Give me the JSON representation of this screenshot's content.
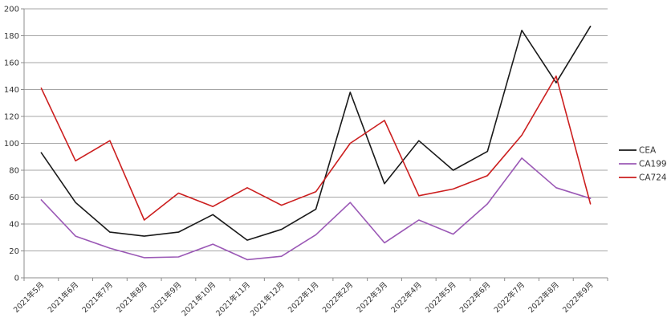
{
  "chart_data": {
    "type": "line",
    "title": "",
    "xlabel": "",
    "ylabel": "",
    "categories": [
      "2021年5月",
      "2021年6月",
      "2021年7月",
      "2021年8月",
      "2021年9月",
      "2021年10月",
      "2021年11月",
      "2021年12月",
      "2022年1月",
      "2022年2月",
      "2022年3月",
      "2022年4月",
      "2022年5月",
      "2022年6月",
      "2022年7月",
      "2022年8月",
      "2022年9月"
    ],
    "ylim": [
      0,
      200
    ],
    "yticks": [
      0,
      20,
      40,
      60,
      80,
      100,
      120,
      140,
      160,
      180,
      200
    ],
    "grid": true,
    "legend_position": "right",
    "series": [
      {
        "name": "CEA",
        "color": "#1a1a1a",
        "values": [
          93,
          56,
          34,
          31,
          34,
          47,
          28,
          36,
          51,
          138,
          70,
          102,
          80,
          94,
          184,
          145,
          187
        ]
      },
      {
        "name": "CA199",
        "color": "#9b59b6",
        "values": [
          58,
          31,
          22,
          15,
          15.5,
          25,
          13.5,
          16,
          32,
          56,
          26,
          43,
          32.5,
          55,
          89,
          67,
          59
        ]
      },
      {
        "name": "CA724",
        "color": "#cc1f1f",
        "values": [
          141,
          87,
          102,
          43,
          63,
          53,
          67,
          54,
          64,
          100,
          117,
          61,
          66,
          76,
          106,
          150,
          55
        ]
      }
    ]
  }
}
